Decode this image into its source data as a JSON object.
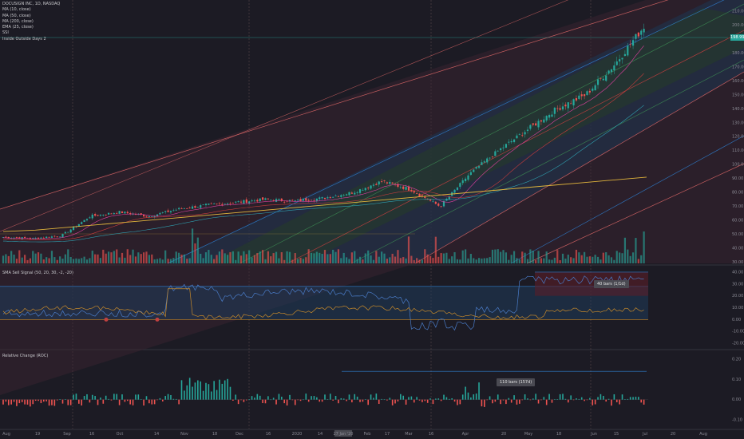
{
  "legend": {
    "symbol": "DOCUSIGN INC, 1D, NASDAQ",
    "lines": [
      "MA (10, close)",
      "MA (50, close)",
      "MA (200, close)",
      "EMA (25, close)",
      "SSI",
      "Inside Outside Days 2"
    ]
  },
  "last_price_tag": "198.99",
  "panes": {
    "signal_title": "SMA Sell Signal (50, 20, 30, -2, -20)",
    "relchange_title": "Relative Change (ROC)",
    "signal_range_box": "40 bars (1/1d)",
    "relchange_range_box": "110 bars (157d)"
  },
  "colors": {
    "bg": "#1c1b24",
    "up": "#26a69a",
    "down": "#ef5350",
    "ma200": "#e0b43c",
    "channel_inner": "#2f7fd0",
    "channel_outer": "#e06868"
  },
  "chart_data": [
    {
      "type": "candlestick",
      "title": "DOCUSIGN INC, 1D, NASDAQ",
      "x_tick_labels": [
        "Aug",
        "19",
        "Sep",
        "16",
        "Oct",
        "14",
        "Nov",
        "18",
        "Dec",
        "16",
        "2020",
        "14",
        "27 Jan '20",
        "Feb",
        "17",
        "Mar",
        "16",
        "Apr",
        "20",
        "May",
        "18",
        "Jun",
        "15",
        "Jul",
        "20",
        "Aug"
      ],
      "y_tick_labels": [
        "210.00",
        "200.00",
        "190.00",
        "180.00",
        "170.00",
        "160.00",
        "150.00",
        "140.00",
        "130.00",
        "120.00",
        "110.00",
        "100.00",
        "90.00",
        "80.00",
        "70.00",
        "60.00",
        "50.00",
        "40.00",
        "30.00"
      ],
      "ylim": [
        30,
        215
      ],
      "close_series": [
        {
          "date": "Aug",
          "value": 48
        },
        {
          "date": "19",
          "value": 47
        },
        {
          "date": "Sep",
          "value": 49
        },
        {
          "date": "16",
          "value": 63
        },
        {
          "date": "Oct",
          "value": 66
        },
        {
          "date": "14",
          "value": 63
        },
        {
          "date": "Nov",
          "value": 68
        },
        {
          "date": "18",
          "value": 71
        },
        {
          "date": "Dec",
          "value": 73
        },
        {
          "date": "16",
          "value": 75
        },
        {
          "date": "2020",
          "value": 74
        },
        {
          "date": "14",
          "value": 76
        },
        {
          "date": "Feb",
          "value": 80
        },
        {
          "date": "17",
          "value": 88
        },
        {
          "date": "Mar",
          "value": 82
        },
        {
          "date": "16",
          "value": 70
        },
        {
          "date": "Apr",
          "value": 93
        },
        {
          "date": "20",
          "value": 110
        },
        {
          "date": "May",
          "value": 125
        },
        {
          "date": "18",
          "value": 140
        },
        {
          "date": "Jun",
          "value": 150
        },
        {
          "date": "15",
          "value": 172
        },
        {
          "date": "Jul",
          "value": 199
        }
      ],
      "ma200": [
        52,
        53,
        55,
        57,
        59,
        61,
        63,
        65,
        67,
        69,
        71,
        73,
        75,
        77,
        79,
        81,
        83,
        85,
        87,
        89,
        91
      ]
    },
    {
      "type": "area",
      "title": "SMA Sell Signal (50, 20, 30, -2, -20)",
      "y_tick_labels": [
        "40.00",
        "30.00",
        "20.00",
        "10.00",
        "0.00",
        "-10.00",
        "-20.00"
      ],
      "ylim": [
        -22,
        42
      ]
    },
    {
      "type": "bar",
      "title": "Relative Change (ROC)",
      "y_tick_labels": [
        "0.20",
        "0.10",
        "0.00",
        "-0.10"
      ],
      "ylim": [
        -0.12,
        0.22
      ]
    }
  ]
}
